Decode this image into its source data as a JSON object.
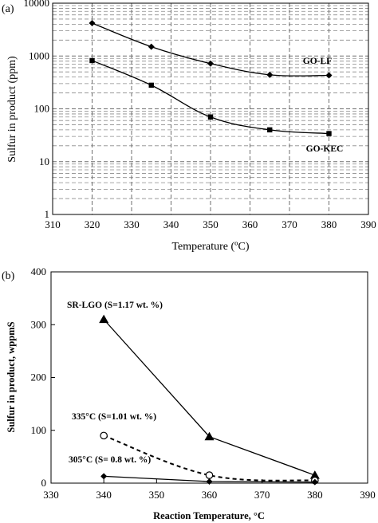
{
  "chart_data": [
    {
      "type": "line",
      "panel_label": "(a)",
      "xlabel": "Temperature (ºC)",
      "ylabel": "Sulfur in product (ppm)",
      "xlim": [
        310,
        390
      ],
      "ylim": [
        1,
        10000
      ],
      "yscale": "log",
      "x_ticks": [
        "310",
        "320",
        "330",
        "340",
        "350",
        "360",
        "370",
        "380",
        "390"
      ],
      "y_ticks": [
        "1",
        "10",
        "100",
        "1000",
        "10000"
      ],
      "grid": true,
      "series": [
        {
          "name": "GO-LF",
          "marker": "diamond",
          "x": [
            320,
            335,
            350,
            365,
            380
          ],
          "values": [
            4200,
            1500,
            720,
            440,
            430
          ]
        },
        {
          "name": "GO-KEC",
          "marker": "square",
          "x": [
            320,
            335,
            350,
            365,
            380
          ],
          "values": [
            820,
            280,
            70,
            40,
            34
          ]
        }
      ]
    },
    {
      "type": "line",
      "panel_label": "(b)",
      "xlabel": "Reaction Temperature, °C",
      "ylabel": "Sulfur in product, wppmS",
      "xlim": [
        330,
        390
      ],
      "ylim": [
        0,
        400
      ],
      "x_ticks": [
        "330",
        "340",
        "350",
        "360",
        "370",
        "380",
        "390"
      ],
      "y_ticks": [
        "0",
        "100",
        "200",
        "300",
        "400"
      ],
      "grid": false,
      "series": [
        {
          "name": "SR-LGO (S=1.17 wt. %)",
          "marker": "triangle",
          "line": "solid",
          "x": [
            340,
            360,
            380
          ],
          "values": [
            310,
            88,
            15
          ]
        },
        {
          "name": "335°C (S=1.01 wt. %)",
          "marker": "circle-open",
          "line": "dashed",
          "x": [
            340,
            360,
            380
          ],
          "values": [
            90,
            15,
            5
          ]
        },
        {
          "name": "305°C (S= 0.8 wt. %)",
          "marker": "diamond",
          "line": "solid",
          "x": [
            340,
            360,
            380
          ],
          "values": [
            13,
            3,
            2
          ]
        }
      ]
    }
  ]
}
